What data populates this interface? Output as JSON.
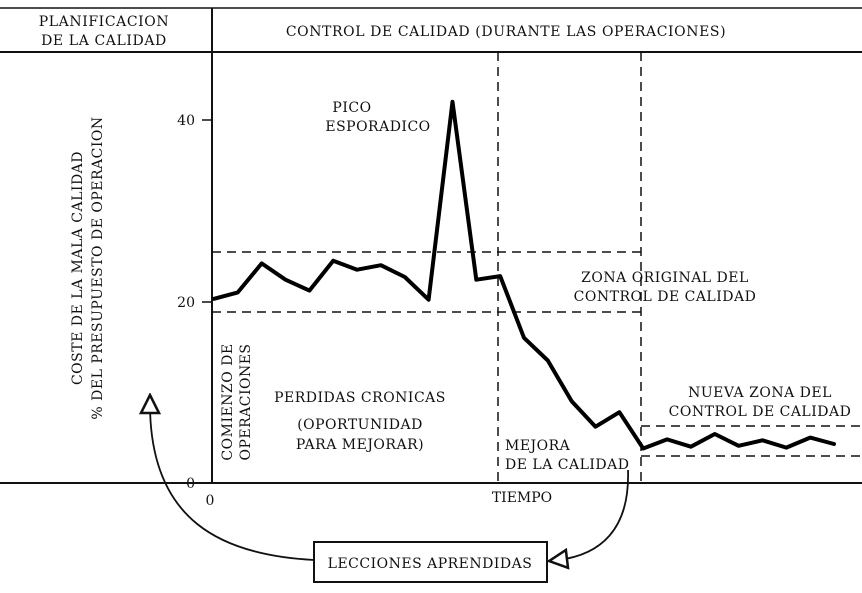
{
  "header": {
    "left_line1": "PLANIFICACION",
    "left_line2": "DE LA CALIDAD",
    "right": "CONTROL DE CALIDAD (DURANTE LAS OPERACIONES)"
  },
  "axes": {
    "y_label_line1": "COSTE DE LA MALA CALIDAD",
    "y_label_line2": "% DEL PRESUPUESTO DE OPERACION",
    "y_ticks": [
      "40",
      "20",
      "0"
    ],
    "x_origin": "0",
    "x_label": "TIEMPO"
  },
  "annotations": {
    "peak_line1": "PICO",
    "peak_line2": "ESPORADICO",
    "start_line1": "COMIENZO DE",
    "start_line2": "OPERACIONES",
    "chronic_line1": "PERDIDAS CRONICAS",
    "chronic_line2": "(OPORTUNIDAD",
    "chronic_line3": "PARA MEJORAR)",
    "improve_line1": "MEJORA",
    "improve_line2": "DE LA CALIDAD",
    "orig_zone_line1": "ZONA ORIGINAL DEL",
    "orig_zone_line2": "CONTROL DE CALIDAD",
    "new_zone_line1": "NUEVA ZONA DEL",
    "new_zone_line2": "CONTROL DE CALIDAD",
    "lessons": "LECCIONES APRENDIDAS"
  },
  "chart_data": {
    "type": "line",
    "y_range": [
      0,
      40
    ],
    "points": [
      [
        0,
        20.3
      ],
      [
        1,
        21.0
      ],
      [
        2,
        24.2
      ],
      [
        3,
        22.4
      ],
      [
        4,
        21.2
      ],
      [
        5,
        24.5
      ],
      [
        6,
        23.5
      ],
      [
        7,
        24.0
      ],
      [
        8,
        22.7
      ],
      [
        9,
        20.2
      ],
      [
        10,
        42.0
      ],
      [
        11,
        22.4
      ],
      [
        12,
        22.8
      ],
      [
        13,
        16.0
      ],
      [
        14,
        13.5
      ],
      [
        15,
        9.0
      ],
      [
        16,
        6.2
      ],
      [
        17,
        7.8
      ],
      [
        18,
        3.8
      ],
      [
        19,
        4.8
      ],
      [
        20,
        4.0
      ],
      [
        21,
        5.4
      ],
      [
        22,
        4.1
      ],
      [
        23,
        4.7
      ],
      [
        24,
        3.9
      ],
      [
        25,
        5.0
      ],
      [
        26,
        4.3
      ]
    ],
    "original_zone": [
      19,
      25.5
    ],
    "new_zone": [
      3,
      6
    ]
  }
}
